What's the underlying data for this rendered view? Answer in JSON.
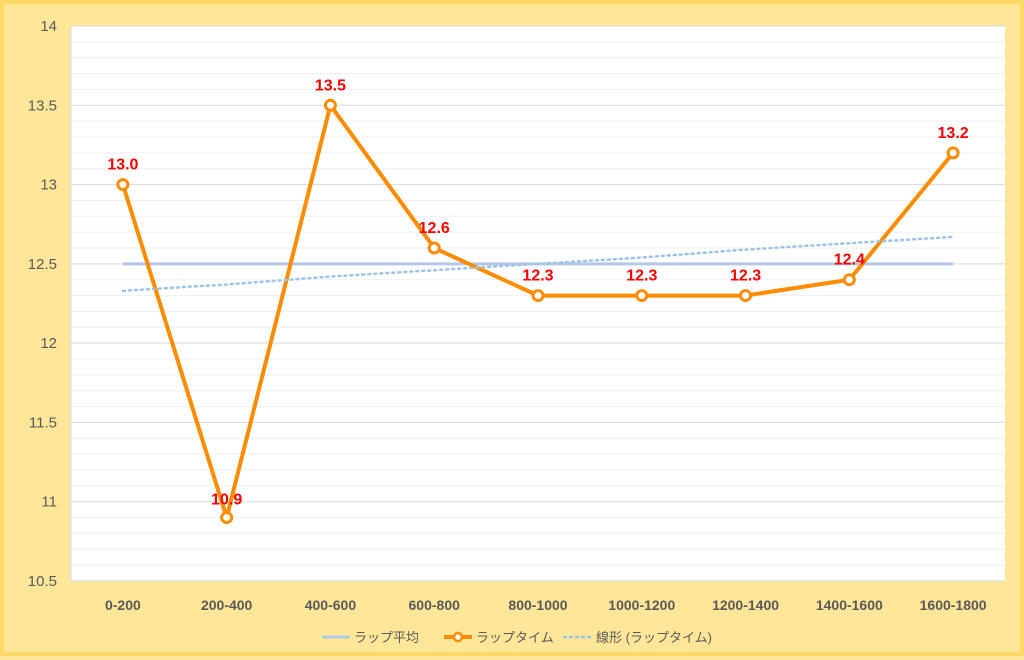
{
  "chart_data": {
    "type": "line",
    "categories": [
      "0-200",
      "200-400",
      "400-600",
      "600-800",
      "800-1000",
      "1000-1200",
      "1200-1400",
      "1400-1600",
      "1600-1800"
    ],
    "ylim": [
      10.5,
      14
    ],
    "yticks": [
      "10.5",
      "11",
      "11.5",
      "12",
      "12.5",
      "13",
      "13.5",
      "14"
    ],
    "grid": true,
    "legend_position": "bottom",
    "series": [
      {
        "name": "ラップ平均",
        "values": [
          12.5,
          12.5,
          12.5,
          12.5,
          12.5,
          12.5,
          12.5,
          12.5,
          12.5
        ],
        "color": "#b4c7e7",
        "style": "solid"
      },
      {
        "name": "ラップタイム",
        "values": [
          13.0,
          10.9,
          13.5,
          12.6,
          12.3,
          12.3,
          12.3,
          12.4,
          13.2
        ],
        "labels": [
          "13.0",
          "10.9",
          "13.5",
          "12.6",
          "12.3",
          "12.3",
          "12.3",
          "12.4",
          "13.2"
        ],
        "color": "#ff8c00",
        "style": "solid-markers"
      },
      {
        "name": "線形 (ラップタイム)",
        "values": [
          12.33,
          12.37,
          12.42,
          12.46,
          12.5,
          12.54,
          12.59,
          12.63,
          12.67
        ],
        "color": "#9dc3e6",
        "style": "dotted"
      }
    ]
  },
  "colors": {
    "background": "#ffe699",
    "plot_area": "#ffffff",
    "label_red": "#ff0000"
  }
}
